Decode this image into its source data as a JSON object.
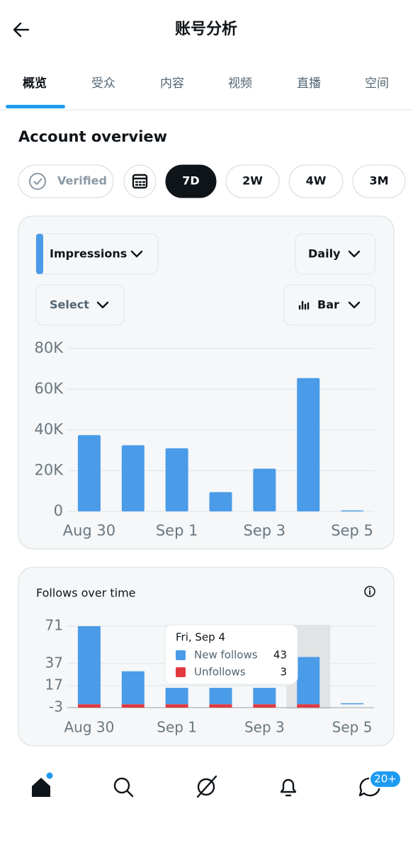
{
  "header": {
    "title": "账号分析"
  },
  "tabs": [
    "概览",
    "受众",
    "内容",
    "视频",
    "直播",
    "空间"
  ],
  "section_title": "Account overview",
  "verified_label": "Verified",
  "ranges": [
    "7D",
    "2W",
    "4W",
    "3M"
  ],
  "controls": {
    "metric": "Impressions",
    "interval": "Daily",
    "compare": "Select",
    "chart_style": "Bar"
  },
  "follows_title": "Follows over time",
  "tooltip": {
    "title": "Fri, Sep 4"
  },
  "nav": {
    "badge": "20+"
  },
  "chart_data": [
    {
      "type": "bar",
      "categories": [
        "Aug 30",
        null,
        "Sep 1",
        null,
        "Sep 3",
        null,
        "Sep 5"
      ],
      "values": [
        37500,
        32500,
        31000,
        9500,
        21000,
        65500,
        500
      ],
      "color": "#4a9be8",
      "ylim": [
        0,
        80000
      ],
      "yticks": [
        0,
        {
          "value": 20000,
          "label": "20K"
        },
        {
          "value": 40000,
          "label": "40K"
        },
        {
          "value": 60000,
          "label": "60K"
        },
        {
          "value": 80000,
          "label": "80K"
        }
      ],
      "grid": true
    },
    {
      "type": "diverging_bar",
      "categories": [
        "Aug 30",
        null,
        "Sep 1",
        null,
        "Sep 3",
        null,
        "Sep 5"
      ],
      "series": [
        {
          "name": "New follows",
          "color": "#4a9be8",
          "values": [
            71,
            30,
            15,
            15,
            15,
            43,
            1
          ]
        },
        {
          "name": "Unfollows",
          "color": "#e0393e",
          "values": [
            3,
            3,
            3,
            3,
            3,
            3,
            0
          ]
        }
      ],
      "ylim": [
        -3,
        71
      ],
      "yticks": [
        -3,
        17,
        37,
        71
      ],
      "grid": true,
      "highlight": 5
    }
  ]
}
